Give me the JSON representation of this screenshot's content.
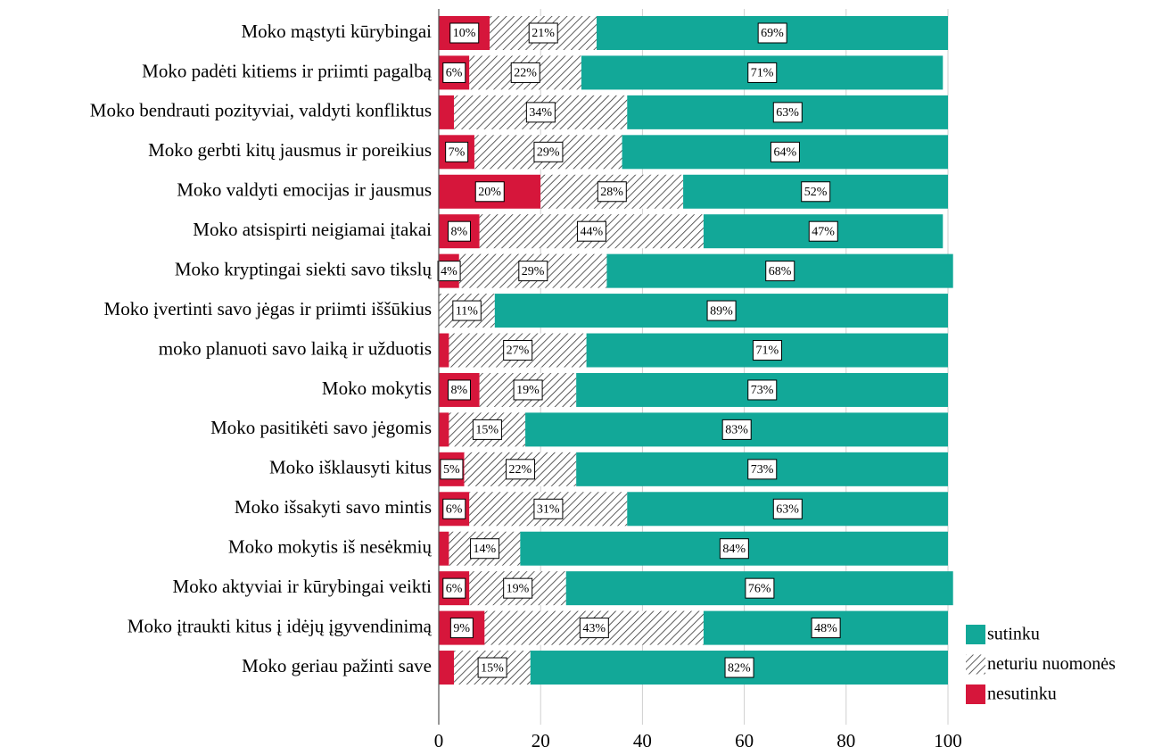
{
  "chart_data": {
    "type": "stacked_barh",
    "categories": [
      "Moko mąstyti kūrybingai",
      "Moko padėti kitiems ir priimti pagalbą",
      "Moko bendrauti pozityviai, valdyti konfliktus",
      "Moko gerbti kitų jausmus ir poreikius",
      "Moko valdyti emocijas ir jausmus",
      "Moko atsispirti neigiamai įtakai",
      "Moko kryptingai siekti savo tikslų",
      "Moko įvertinti savo jėgas ir priimti iššūkius",
      "moko planuoti savo laiką ir užduotis",
      "Moko mokytis",
      "Moko pasitikėti savo jėgomis",
      "Moko išklausyti kitus",
      "Moko išsakyti savo mintis",
      "Moko mokytis iš nesėkmių",
      "Moko aktyviai ir kūrybingai veikti",
      "Moko įtraukti kitus į idėjų įgyvendinimą",
      "Moko geriau pažinti save"
    ],
    "series": [
      {
        "name": "nesutinku",
        "color": "#d6163b",
        "hatch": false,
        "values": [
          10,
          6,
          3,
          7,
          20,
          8,
          4,
          0,
          2,
          8,
          2,
          5,
          6,
          2,
          6,
          9,
          3
        ],
        "value_labels": [
          "10%",
          "6%",
          null,
          "7%",
          "20%",
          "8%",
          "4%",
          null,
          null,
          "8%",
          null,
          "5%",
          "6%",
          null,
          "6%",
          "9%",
          null
        ]
      },
      {
        "name": "neturiu nuomonės",
        "color": "#333333",
        "hatch": true,
        "values": [
          21,
          22,
          34,
          29,
          28,
          44,
          29,
          11,
          27,
          19,
          15,
          22,
          31,
          14,
          19,
          43,
          15
        ],
        "value_labels": [
          "21%",
          "22%",
          "34%",
          "29%",
          "28%",
          "44%",
          "29%",
          "11%",
          "27%",
          "19%",
          "15%",
          "22%",
          "31%",
          "14%",
          "19%",
          "43%",
          "15%"
        ]
      },
      {
        "name": "sutinku",
        "color": "#12a898",
        "hatch": false,
        "values": [
          69,
          71,
          63,
          64,
          52,
          47,
          68,
          89,
          71,
          73,
          83,
          73,
          63,
          84,
          76,
          48,
          82
        ],
        "value_labels": [
          "69%",
          "71%",
          "63%",
          "64%",
          "52%",
          "47%",
          "68%",
          "89%",
          "71%",
          "73%",
          "83%",
          "73%",
          "63%",
          "84%",
          "76%",
          "48%",
          "82%"
        ]
      }
    ],
    "xlim": [
      0,
      100
    ],
    "xticks": [
      0,
      20,
      40,
      60,
      80,
      100
    ],
    "grid": true,
    "legend": "bottom-right"
  }
}
